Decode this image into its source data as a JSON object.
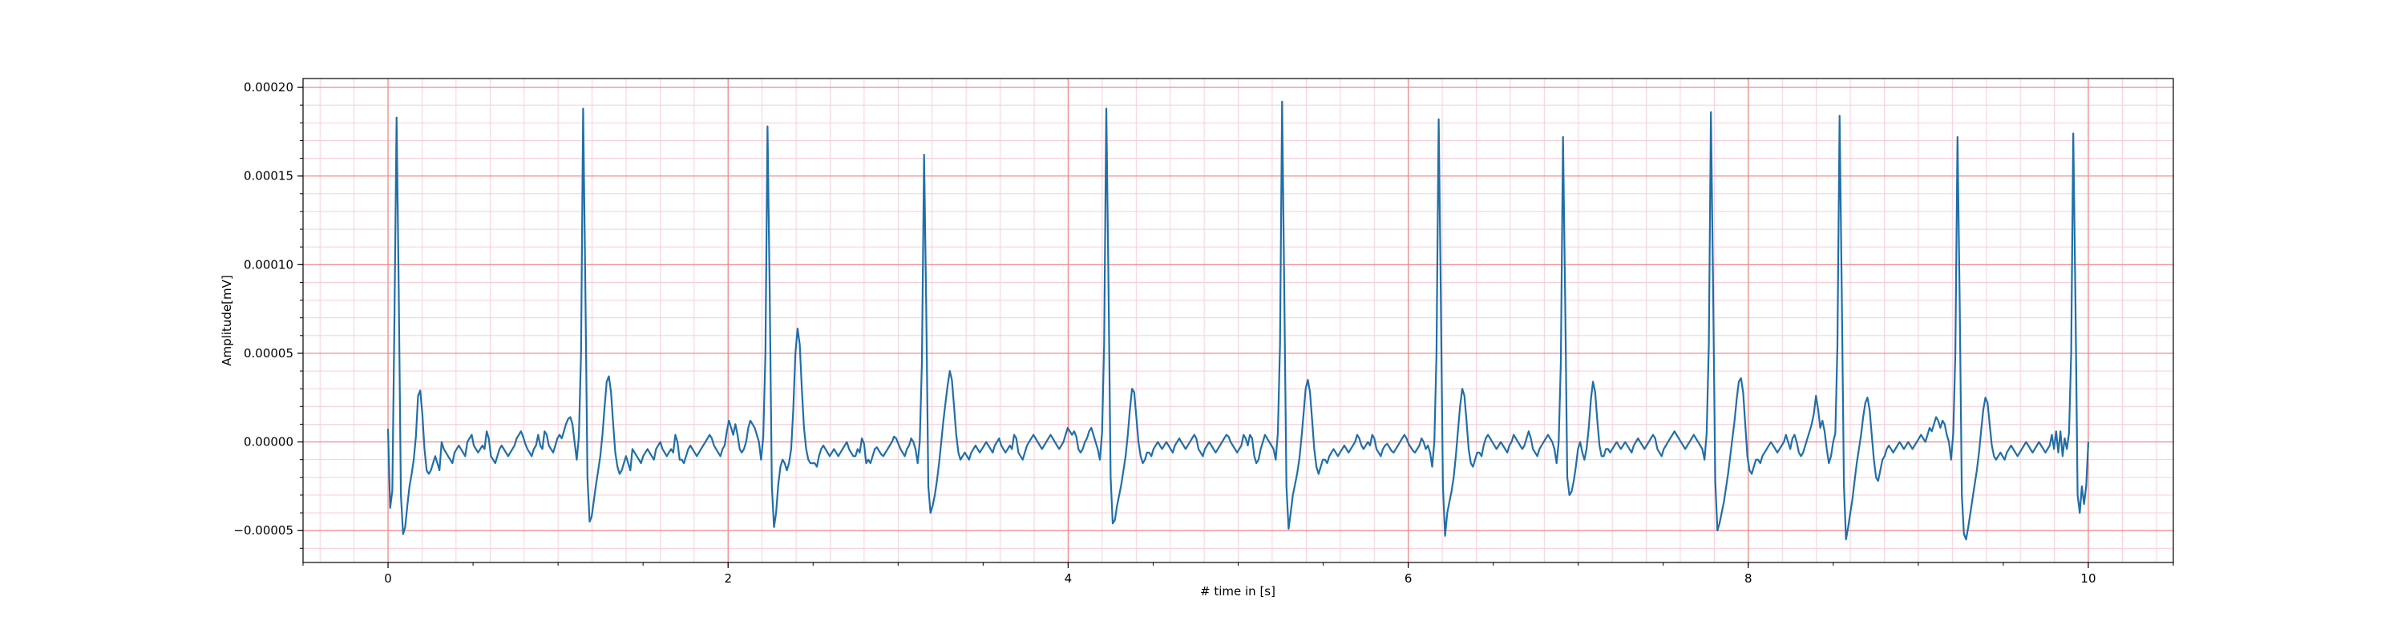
{
  "chart_data": {
    "type": "line",
    "title": "",
    "xlabel": "# time in [s]",
    "ylabel": "Amplitude[mV]",
    "xlim": [
      -0.5,
      10.5
    ],
    "ylim": [
      -6.8e-05,
      0.000205
    ],
    "x_ticks": [
      0,
      2,
      4,
      6,
      8,
      10
    ],
    "x_tick_labels": [
      "0",
      "2",
      "4",
      "6",
      "8",
      "10"
    ],
    "y_ticks": [
      -5e-05,
      0.0,
      5e-05,
      0.0001,
      0.00015,
      0.0002
    ],
    "y_tick_labels": [
      "−0.00005",
      "0.00000",
      "0.00005",
      "0.00010",
      "0.00015",
      "0.00020"
    ],
    "grid": {
      "major": true,
      "minor": true,
      "major_color": "#f08080",
      "minor_color": "#f5c6d6"
    },
    "line_color": "#1f6fa8",
    "sampling_rate_hz": 100,
    "series": [
      {
        "name": "",
        "x_start": 0.0,
        "x_end": 10.0,
        "r_peaks_s": [
          0.05,
          0.96,
          1.86,
          2.74,
          3.65,
          4.56,
          5.47,
          6.36,
          7.27,
          8.18,
          9.06,
          9.94
        ],
        "r_peak_amplitudes": [
          0.000183,
          0.000188,
          0.000178,
          0.000162,
          0.000188,
          0.000192,
          0.000182,
          0.000172,
          0.000186,
          0.000184,
          0.000172,
          0.000174
        ],
        "values": [
          7.4e-06,
          -3.72e-05,
          -2.75e-05,
          7.2e-05,
          0.000183,
          8.5e-05,
          -3e-05,
          -5.2e-05,
          -4.8e-05,
          -3.6e-05,
          -2.5e-05,
          -1.8e-05,
          -1e-05,
          3e-06,
          2.6e-05,
          2.9e-05,
          1.6e-05,
          -4e-06,
          -1.6e-05,
          -1.8e-05,
          -1.6e-05,
          -1.2e-05,
          -8e-06,
          -1.2e-05,
          -1.6e-05,
          0.0,
          -4e-06,
          -6e-06,
          -8e-06,
          -1e-05,
          -1.2e-05,
          -6e-06,
          -4e-06,
          -2e-06,
          -4e-06,
          -6e-06,
          -8e-06,
          0.0,
          2e-06,
          4e-06,
          -2e-06,
          -4e-06,
          -6e-06,
          -4e-06,
          -2e-06,
          -4e-06,
          6e-06,
          2e-06,
          -8e-06,
          -1e-05,
          -1.2e-05,
          -8e-06,
          -4e-06,
          -2e-06,
          -4e-06,
          -6e-06,
          -8e-06,
          -6e-06,
          -4e-06,
          -2e-06,
          2e-06,
          4e-06,
          6e-06,
          3e-06,
          -1e-06,
          -4e-06,
          -6e-06,
          -8e-06,
          -4e-06,
          -2e-06,
          4e-06,
          -2e-06,
          -4e-06,
          6e-06,
          4e-06,
          -2e-06,
          -4e-06,
          -6e-06,
          -2e-06,
          2e-06,
          4e-06,
          2e-06,
          6e-06,
          1e-05,
          1.3e-05,
          1.4e-05,
          1e-05,
          0.0,
          -1e-05,
          3e-06,
          5e-05,
          0.000188,
          9e-05,
          -2e-05,
          -4.5e-05,
          -4.2e-05,
          -3.3e-05,
          -2.4e-05,
          -1.6e-05,
          -8e-06,
          4e-06,
          2e-05,
          3.4e-05,
          3.7e-05,
          2.8e-05,
          1e-05,
          -6e-06,
          -1.4e-05,
          -1.8e-05,
          -1.6e-05,
          -1.2e-05,
          -8e-06,
          -1.2e-05,
          -1.6e-05,
          -4e-06,
          -6e-06,
          -8e-06,
          -1e-05,
          -1.2e-05,
          -8e-06,
          -6e-06,
          -4e-06,
          -6e-06,
          -8e-06,
          -1e-05,
          -4e-06,
          -2e-06,
          0.0,
          -4e-06,
          -6e-06,
          -8e-06,
          -6e-06,
          -4e-06,
          -6e-06,
          4e-06,
          0.0,
          -1e-05,
          -1e-05,
          -1.2e-05,
          -8e-06,
          -4e-06,
          -2e-06,
          -4e-06,
          -6e-06,
          -8e-06,
          -6e-06,
          -4e-06,
          -2e-06,
          0.0,
          2e-06,
          4e-06,
          2e-06,
          -2e-06,
          -4e-06,
          -6e-06,
          -8e-06,
          -4e-06,
          -2e-06,
          6e-06,
          1.2e-05,
          8e-06,
          4e-06,
          1e-05,
          4e-06,
          -4e-06,
          -6e-06,
          -4e-06,
          0.0,
          8e-06,
          1.2e-05,
          1e-05,
          8e-06,
          4e-06,
          0.0,
          -1e-05,
          3e-06,
          5e-05,
          0.000178,
          8.5e-05,
          -2.5e-05,
          -4.8e-05,
          -4e-05,
          -2.4e-05,
          -1.4e-05,
          -1e-05,
          -1.2e-05,
          -1.6e-05,
          -1.2e-05,
          -4e-06,
          1.8e-05,
          5e-05,
          6.4e-05,
          5.5e-05,
          3e-05,
          8e-06,
          -4e-06,
          -1e-05,
          -1.2e-05,
          -1.2e-05,
          -1.2e-05,
          -1.4e-05,
          -8e-06,
          -4e-06,
          -2e-06,
          -4e-06,
          -6e-06,
          -8e-06,
          -6e-06,
          -4e-06,
          -6e-06,
          -8e-06,
          -6e-06,
          -4e-06,
          -2e-06,
          0.0,
          -4e-06,
          -6e-06,
          -8e-06,
          -8e-06,
          -4e-06,
          -6e-06,
          2e-06,
          -1e-06,
          -1.2e-05,
          -1e-05,
          -1.2e-05,
          -8e-06,
          -4e-06,
          -3e-06,
          -5e-06,
          -7e-06,
          -8e-06,
          -6e-06,
          -4e-06,
          -2e-06,
          0.0,
          3e-06,
          2e-06,
          -1e-06,
          -4e-06,
          -6e-06,
          -8e-06,
          -4e-06,
          -2e-06,
          2e-06,
          0.0,
          -4e-06,
          -1.2e-05,
          0.0,
          4.5e-05,
          0.000162,
          7.5e-05,
          -2.5e-05,
          -4e-05,
          -3.6e-05,
          -3e-05,
          -2.2e-05,
          -1.2e-05,
          0.0,
          1.2e-05,
          2.2e-05,
          3.2e-05,
          4e-05,
          3.5e-05,
          2e-05,
          4e-06,
          -6e-06,
          -1e-05,
          -8e-06,
          -6e-06,
          -8e-06,
          -1e-05,
          -6e-06,
          -4e-06,
          -2e-06,
          -4e-06,
          -6e-06,
          -4e-06,
          -2e-06,
          0.0,
          -2e-06,
          -4e-06,
          -6e-06,
          -2e-06,
          0.0,
          2e-06,
          -2e-06,
          -4e-06,
          -6e-06,
          -4e-06,
          -2e-06,
          -4e-06,
          4e-06,
          2e-06,
          -6e-06,
          -8e-06,
          -1e-05,
          -6e-06,
          -2e-06,
          0.0,
          2e-06,
          4e-06,
          2e-06,
          0.0,
          -2e-06,
          -4e-06,
          -2e-06,
          0.0,
          2e-06,
          4e-06,
          2e-06,
          0.0,
          -2e-06,
          -4e-06,
          -2e-06,
          0.0,
          4e-06,
          8e-06,
          6e-06,
          4e-06,
          6e-06,
          3e-06,
          -4e-06,
          -6e-06,
          -4e-06,
          0.0,
          2e-06,
          6e-06,
          8e-06,
          4e-06,
          0.0,
          -4e-06,
          -1e-05,
          5e-06,
          5.5e-05,
          0.000188,
          9e-05,
          -2e-05,
          -4.6e-05,
          -4.4e-05,
          -3.6e-05,
          -3e-05,
          -2.4e-05,
          -1.6e-05,
          -8e-06,
          4e-06,
          1.8e-05,
          3e-05,
          2.8e-05,
          1.4e-05,
          0.0,
          -8e-06,
          -1.2e-05,
          -1e-05,
          -6e-06,
          -6e-06,
          -8e-06,
          -4e-06,
          -2e-06,
          0.0,
          -2e-06,
          -4e-06,
          -2e-06,
          0.0,
          -2e-06,
          -4e-06,
          -6e-06,
          -2e-06,
          0.0,
          2e-06,
          0.0,
          -2e-06,
          -4e-06,
          -2e-06,
          0.0,
          2e-06,
          4e-06,
          2e-06,
          -4e-06,
          -6e-06,
          -8e-06,
          -4e-06,
          -2e-06,
          0.0,
          -2e-06,
          -4e-06,
          -6e-06,
          -4e-06,
          -2e-06,
          0.0,
          2e-06,
          4e-06,
          3e-06,
          0.0,
          -2e-06,
          -4e-06,
          -6e-06,
          -4e-06,
          -2e-06,
          4e-06,
          2e-06,
          -2e-06,
          4e-06,
          2e-06,
          -8e-06,
          -1.2e-05,
          -1e-05,
          -4e-06,
          0.0,
          4e-06,
          2e-06,
          0.0,
          -2e-06,
          -4e-06,
          -1e-05,
          5e-06,
          5.5e-05,
          0.000192,
          8.5e-05,
          -2.5e-05,
          -4.9e-05,
          -4e-05,
          -3e-05,
          -2.4e-05,
          -1.8e-05,
          -1e-05,
          2e-06,
          1.6e-05,
          3e-05,
          3.5e-05,
          2.8e-05,
          1.2e-05,
          -4e-06,
          -1.4e-05,
          -1.8e-05,
          -1.4e-05,
          -1e-05,
          -1e-05,
          -1.2e-05,
          -8e-06,
          -6e-06,
          -4e-06,
          -6e-06,
          -8e-06,
          -6e-06,
          -4e-06,
          -2e-06,
          -4e-06,
          -6e-06,
          -4e-06,
          -2e-06,
          0.0,
          4e-06,
          2e-06,
          -2e-06,
          -4e-06,
          -2e-06,
          0.0,
          -2e-06,
          4e-06,
          2e-06,
          -4e-06,
          -6e-06,
          -8e-06,
          -4e-06,
          -2e-06,
          -1e-06,
          -3e-06,
          -5e-06,
          -6e-06,
          -4e-06,
          -2e-06,
          0.0,
          2e-06,
          4e-06,
          2e-06,
          -1e-06,
          -3e-06,
          -5e-06,
          -6e-06,
          -4e-06,
          -2e-06,
          2e-06,
          0.0,
          -4e-06,
          -2e-06,
          -6e-06,
          -1.4e-05,
          0.0,
          5e-05,
          0.000182,
          8.5e-05,
          -2.5e-05,
          -5.3e-05,
          -4e-05,
          -3.4e-05,
          -2.8e-05,
          -2e-05,
          -8e-06,
          6e-06,
          2e-05,
          3e-05,
          2.6e-05,
          1.2e-05,
          -4e-06,
          -1.2e-05,
          -1.4e-05,
          -1e-05,
          -6e-06,
          -6e-06,
          -8e-06,
          -2e-06,
          2e-06,
          4e-06,
          2e-06,
          0.0,
          -2e-06,
          -4e-06,
          -2e-06,
          0.0,
          -2e-06,
          -4e-06,
          -6e-06,
          -2e-06,
          0.0,
          4e-06,
          2e-06,
          0.0,
          -2e-06,
          -4e-06,
          -2e-06,
          2e-06,
          6e-06,
          2e-06,
          -4e-06,
          -6e-06,
          -8e-06,
          -4e-06,
          -2e-06,
          0.0,
          2e-06,
          4e-06,
          2e-06,
          0.0,
          -4e-06,
          -1.2e-05,
          0.0,
          4.5e-05,
          0.000172,
          8e-05,
          -2e-05,
          -3e-05,
          -2.8e-05,
          -2.2e-05,
          -1.4e-05,
          -4e-06,
          0.0,
          -6e-06,
          -1e-05,
          -4e-06,
          8e-06,
          2.4e-05,
          3.4e-05,
          2.8e-05,
          1.2e-05,
          -2e-06,
          -8e-06,
          -8e-06,
          -4e-06,
          -4e-06,
          -6e-06,
          -4e-06,
          -2e-06,
          0.0,
          -2e-06,
          -4e-06,
          -2e-06,
          0.0,
          -2e-06,
          -4e-06,
          -6e-06,
          -2e-06,
          0.0,
          2e-06,
          0.0,
          -2e-06,
          -4e-06,
          -2e-06,
          0.0,
          2e-06,
          4e-06,
          2e-06,
          -4e-06,
          -6e-06,
          -8e-06,
          -4e-06,
          -2e-06,
          0.0,
          2e-06,
          4e-06,
          6e-06,
          4e-06,
          2e-06,
          0.0,
          -2e-06,
          -4e-06,
          -2e-06,
          0.0,
          2e-06,
          4e-06,
          2e-06,
          0.0,
          -2e-06,
          -4e-06,
          -1e-05,
          5e-06,
          5.5e-05,
          0.000186,
          8.8e-05,
          -2.2e-05,
          -5e-05,
          -4.6e-05,
          -4e-05,
          -3.4e-05,
          -2.6e-05,
          -1.8e-05,
          -8e-06,
          2e-06,
          1.2e-05,
          2.4e-05,
          3.4e-05,
          3.6e-05,
          2.8e-05,
          1e-05,
          -8e-06,
          -1.6e-05,
          -1.8e-05,
          -1.4e-05,
          -1e-05,
          -1e-05,
          -1.2e-05,
          -8e-06,
          -6e-06,
          -4e-06,
          -2e-06,
          0.0,
          -2e-06,
          -4e-06,
          -6e-06,
          -4e-06,
          -2e-06,
          0.0,
          4e-06,
          0.0,
          -4e-06,
          2e-06,
          4e-06,
          0.0,
          -6e-06,
          -8e-06,
          -6e-06,
          -2e-06,
          2e-06,
          6e-06,
          1e-05,
          1.6e-05,
          2.6e-05,
          1.8e-05,
          8e-06,
          1.2e-05,
          6e-06,
          -4e-06,
          -1.2e-05,
          -8e-06,
          0.0,
          5e-06,
          5.4e-05,
          0.000184,
          8.5e-05,
          -2.4e-05,
          -5.5e-05,
          -4.8e-05,
          -4e-05,
          -3.2e-05,
          -2.2e-05,
          -1.2e-05,
          -4e-06,
          4e-06,
          1.4e-05,
          2.2e-05,
          2.5e-05,
          1.8e-05,
          4e-06,
          -1e-05,
          -2e-05,
          -2.2e-05,
          -1.6e-05,
          -1e-05,
          -8e-06,
          -4e-06,
          -2e-06,
          -4e-06,
          -6e-06,
          -4e-06,
          -2e-06,
          0.0,
          -2e-06,
          -4e-06,
          -2e-06,
          0.0,
          -2e-06,
          -4e-06,
          -2e-06,
          0.0,
          2e-06,
          4e-06,
          2e-06,
          0.0,
          4e-06,
          8e-06,
          6e-06,
          1e-05,
          1.4e-05,
          1.2e-05,
          8e-06,
          1.2e-05,
          1e-05,
          4e-06,
          0.0,
          -1e-05,
          5e-06,
          5e-05,
          0.000172,
          8e-05,
          -3e-05,
          -5.2e-05,
          -5.5e-05,
          -4.8e-05,
          -4e-05,
          -3.2e-05,
          -2.4e-05,
          -1.6e-05,
          -6e-06,
          6e-06,
          1.8e-05,
          2.5e-05,
          2.2e-05,
          1e-05,
          -2e-06,
          -8e-06,
          -1e-05,
          -8e-06,
          -6e-06,
          -8e-06,
          -1e-05,
          -6e-06,
          -4e-06,
          -2e-06,
          -4e-06,
          -6e-06,
          -8e-06,
          -6e-06,
          -4e-06,
          -2e-06,
          0.0,
          -2e-06,
          -4e-06,
          -6e-06,
          -4e-06,
          -2e-06,
          0.0,
          -2e-06,
          -4e-06,
          -6e-06,
          -4e-06,
          -2e-06,
          4e-06,
          -4e-06,
          6e-06,
          -6e-06,
          6e-06,
          -8e-06,
          2e-06,
          -4e-06,
          5e-06,
          5e-05,
          0.000174,
          8e-05,
          -3e-05,
          -4e-05,
          -2.5e-05,
          -3.5e-05,
          -2.5e-05,
          0.0
        ]
      }
    ]
  }
}
